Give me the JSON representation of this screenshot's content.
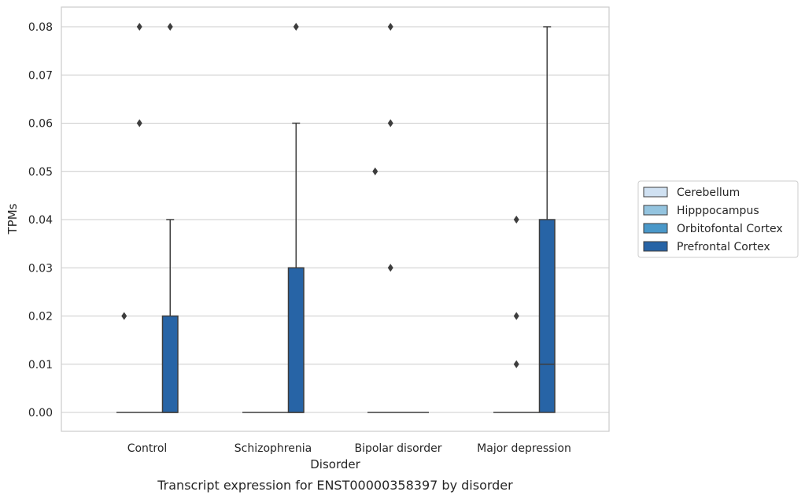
{
  "chart_data": {
    "type": "box",
    "caption": "Transcript expression for ENST00000358397 by disorder",
    "xlabel": "Disorder",
    "ylabel": "TPMs",
    "ylim": [
      -0.004,
      0.084
    ],
    "yticks": [
      "0.00",
      "0.01",
      "0.02",
      "0.03",
      "0.04",
      "0.05",
      "0.06",
      "0.07",
      "0.08"
    ],
    "categories": [
      "Control",
      "Schizophrenia",
      "Bipolar disorder",
      "Major depression"
    ],
    "grid": "horizontal",
    "legend_placement": "right",
    "series": [
      {
        "name": "Cerebellum",
        "color": "#d0e1f2",
        "boxes": [
          {
            "q1": 0,
            "median": 0,
            "q3": 0,
            "whisker_low": 0,
            "whisker_high": 0,
            "outliers": [
              0.02
            ]
          },
          {
            "q1": 0,
            "median": 0,
            "q3": 0,
            "whisker_low": 0,
            "whisker_high": 0,
            "outliers": []
          },
          {
            "q1": 0,
            "median": 0,
            "q3": 0,
            "whisker_low": 0,
            "whisker_high": 0,
            "outliers": [
              0.05
            ]
          },
          {
            "q1": 0,
            "median": 0,
            "q3": 0,
            "whisker_low": 0,
            "whisker_high": 0,
            "outliers": []
          }
        ]
      },
      {
        "name": "Hipppocampus",
        "color": "#94c4df",
        "boxes": [
          {
            "q1": 0,
            "median": 0,
            "q3": 0,
            "whisker_low": 0,
            "whisker_high": 0,
            "outliers": [
              0.06,
              0.08
            ]
          },
          {
            "q1": 0,
            "median": 0,
            "q3": 0,
            "whisker_low": 0,
            "whisker_high": 0,
            "outliers": []
          },
          {
            "q1": 0,
            "median": 0,
            "q3": 0,
            "whisker_low": 0,
            "whisker_high": 0,
            "outliers": [
              0.03,
              0.06,
              0.08
            ]
          },
          {
            "q1": 0,
            "median": 0,
            "q3": 0,
            "whisker_low": 0,
            "whisker_high": 0,
            "outliers": [
              0.01,
              0.02,
              0.04
            ]
          }
        ]
      },
      {
        "name": "Orbitofontal Cortex",
        "color": "#4a98c9",
        "boxes": [
          {
            "q1": 0,
            "median": 0,
            "q3": 0,
            "whisker_low": 0,
            "whisker_high": 0,
            "outliers": []
          },
          {
            "q1": 0,
            "median": 0,
            "q3": 0,
            "whisker_low": 0,
            "whisker_high": 0,
            "outliers": []
          },
          {
            "q1": 0,
            "median": 0,
            "q3": 0,
            "whisker_low": 0,
            "whisker_high": 0,
            "outliers": []
          },
          {
            "q1": 0,
            "median": 0,
            "q3": 0,
            "whisker_low": 0,
            "whisker_high": 0,
            "outliers": []
          }
        ]
      },
      {
        "name": "Prefrontal Cortex",
        "color": "#2764a6",
        "boxes": [
          {
            "q1": 0,
            "median": 0,
            "q3": 0.02,
            "whisker_low": 0,
            "whisker_high": 0.04,
            "outliers": [
              0.08
            ]
          },
          {
            "q1": 0,
            "median": 0,
            "q3": 0.03,
            "whisker_low": 0,
            "whisker_high": 0.06,
            "outliers": [
              0.08
            ]
          },
          {
            "q1": 0,
            "median": 0,
            "q3": 0,
            "whisker_low": 0,
            "whisker_high": 0,
            "outliers": []
          },
          {
            "q1": 0,
            "median": 0.01,
            "q3": 0.04,
            "whisker_low": 0,
            "whisker_high": 0.08,
            "outliers": []
          }
        ]
      }
    ]
  }
}
